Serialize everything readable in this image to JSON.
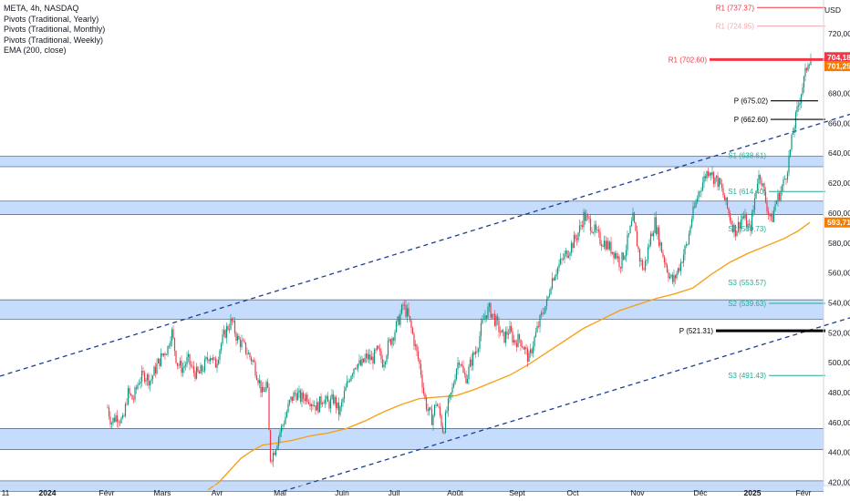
{
  "legend": {
    "symbol": "META, 4h, NASDAQ",
    "indicators": [
      "Pivots (Traditional, Yearly)",
      "Pivots (Traditional, Monthly)",
      "Pivots (Traditional, Weekly)",
      "EMA (200, close)"
    ]
  },
  "colors": {
    "up": "#089981",
    "down": "#f23645",
    "ema": "#f7a21b",
    "zone_fill": "#bbd6fb",
    "zone_border": "#5f7287",
    "channel": "#1c3f94",
    "pivot_black": "#000000",
    "pivot_green": "#22ab94",
    "pivot_red": "#f23645",
    "price_tag": "#f57c00"
  },
  "chart_data": {
    "type": "candlestick",
    "currency": "USD",
    "ylim": [
      415,
      745
    ],
    "y_ticks": [
      420,
      440,
      460,
      480,
      500,
      520,
      540,
      560,
      580,
      600,
      620,
      640,
      660,
      680,
      700,
      720
    ],
    "y_tick_labels": [
      "420,00",
      "440,00",
      "460,00",
      "480,00",
      "500,00",
      "520,00",
      "540,00",
      "560,00",
      "580,00",
      "600,00",
      "620,00",
      "640,00",
      "660,00",
      "680,00",
      "700,00",
      "720,00"
    ],
    "x_labels": [
      "11",
      "2024",
      "Févr",
      "Mars",
      "Avr",
      "Mai",
      "Juin",
      "Juil",
      "Août",
      "Sept",
      "Oct",
      "Nov",
      "Déc",
      "2025",
      "Févr"
    ],
    "x_label_bold": [
      "2024",
      "2025"
    ],
    "last_price_labels": [
      "704,18",
      "701,25"
    ],
    "ema_label": "593,71",
    "ema_value": 593.71,
    "zones": [
      [
        631,
        638
      ],
      [
        599,
        608
      ],
      [
        529,
        542
      ],
      [
        442,
        456
      ],
      [
        414,
        421
      ]
    ],
    "channel": {
      "upper": [
        [
          0,
          491
        ],
        [
          932,
          666
        ]
      ],
      "lower": [
        [
          310,
          414
        ],
        [
          932,
          530
        ]
      ]
    },
    "close_path": [
      [
        118,
        470
      ],
      [
        122,
        460
      ],
      [
        128,
        465
      ],
      [
        135,
        460
      ],
      [
        140,
        480
      ],
      [
        146,
        475
      ],
      [
        152,
        488
      ],
      [
        158,
        492
      ],
      [
        165,
        488
      ],
      [
        172,
        498
      ],
      [
        178,
        505
      ],
      [
        184,
        510
      ],
      [
        188,
        522
      ],
      [
        194,
        500
      ],
      [
        200,
        496
      ],
      [
        206,
        502
      ],
      [
        212,
        494
      ],
      [
        218,
        492
      ],
      [
        224,
        498
      ],
      [
        230,
        506
      ],
      [
        236,
        498
      ],
      [
        242,
        512
      ],
      [
        248,
        522
      ],
      [
        254,
        528
      ],
      [
        260,
        516
      ],
      [
        266,
        512
      ],
      [
        272,
        506
      ],
      [
        278,
        500
      ],
      [
        284,
        488
      ],
      [
        288,
        478
      ],
      [
        293,
        488
      ],
      [
        296,
        436
      ],
      [
        300,
        440
      ],
      [
        306,
        452
      ],
      [
        312,
        462
      ],
      [
        318,
        474
      ],
      [
        324,
        480
      ],
      [
        330,
        476
      ],
      [
        336,
        478
      ],
      [
        342,
        474
      ],
      [
        348,
        470
      ],
      [
        354,
        477
      ],
      [
        360,
        472
      ],
      [
        366,
        476
      ],
      [
        372,
        466
      ],
      [
        378,
        480
      ],
      [
        384,
        492
      ],
      [
        390,
        500
      ],
      [
        396,
        498
      ],
      [
        402,
        504
      ],
      [
        408,
        502
      ],
      [
        414,
        508
      ],
      [
        420,
        500
      ],
      [
        426,
        512
      ],
      [
        432,
        520
      ],
      [
        438,
        530
      ],
      [
        442,
        538
      ],
      [
        447,
        532
      ],
      [
        452,
        520
      ],
      [
        457,
        506
      ],
      [
        461,
        496
      ],
      [
        465,
        478
      ],
      [
        469,
        468
      ],
      [
        474,
        462
      ],
      [
        478,
        474
      ],
      [
        482,
        466
      ],
      [
        486,
        454
      ],
      [
        490,
        468
      ],
      [
        496,
        482
      ],
      [
        500,
        496
      ],
      [
        504,
        504
      ],
      [
        508,
        492
      ],
      [
        512,
        490
      ],
      [
        516,
        500
      ],
      [
        520,
        506
      ],
      [
        524,
        512
      ],
      [
        528,
        524
      ],
      [
        532,
        532
      ],
      [
        536,
        536
      ],
      [
        540,
        532
      ],
      [
        546,
        524
      ],
      [
        552,
        516
      ],
      [
        558,
        522
      ],
      [
        564,
        514
      ],
      [
        570,
        516
      ],
      [
        576,
        508
      ],
      [
        580,
        502
      ],
      [
        584,
        512
      ],
      [
        588,
        520
      ],
      [
        592,
        528
      ],
      [
        596,
        536
      ],
      [
        600,
        540
      ],
      [
        604,
        554
      ],
      [
        608,
        560
      ],
      [
        612,
        564
      ],
      [
        616,
        568
      ],
      [
        620,
        572
      ],
      [
        626,
        578
      ],
      [
        632,
        584
      ],
      [
        636,
        590
      ],
      [
        640,
        598
      ],
      [
        646,
        594
      ],
      [
        652,
        588
      ],
      [
        658,
        582
      ],
      [
        664,
        580
      ],
      [
        670,
        576
      ],
      [
        676,
        572
      ],
      [
        680,
        566
      ],
      [
        686,
        576
      ],
      [
        690,
        586
      ],
      [
        694,
        596
      ],
      [
        698,
        582
      ],
      [
        702,
        568
      ],
      [
        706,
        562
      ],
      [
        710,
        574
      ],
      [
        714,
        586
      ],
      [
        718,
        594
      ],
      [
        722,
        584
      ],
      [
        726,
        574
      ],
      [
        730,
        566
      ],
      [
        734,
        558
      ],
      [
        738,
        554
      ],
      [
        742,
        560
      ],
      [
        746,
        566
      ],
      [
        750,
        574
      ],
      [
        754,
        580
      ],
      [
        758,
        596
      ],
      [
        762,
        604
      ],
      [
        766,
        614
      ],
      [
        770,
        620
      ],
      [
        774,
        626
      ],
      [
        778,
        630
      ],
      [
        782,
        624
      ],
      [
        786,
        622
      ],
      [
        790,
        618
      ],
      [
        794,
        610
      ],
      [
        798,
        602
      ],
      [
        802,
        594
      ],
      [
        806,
        588
      ],
      [
        810,
        592
      ],
      [
        814,
        598
      ],
      [
        818,
        594
      ],
      [
        822,
        588
      ],
      [
        826,
        602
      ],
      [
        830,
        622
      ],
      [
        834,
        626
      ],
      [
        838,
        612
      ],
      [
        842,
        602
      ],
      [
        846,
        594
      ],
      [
        850,
        606
      ],
      [
        854,
        612
      ],
      [
        858,
        618
      ],
      [
        862,
        626
      ],
      [
        866,
        640
      ],
      [
        870,
        656
      ],
      [
        874,
        668
      ],
      [
        878,
        680
      ],
      [
        882,
        690
      ],
      [
        886,
        702
      ],
      [
        889,
        704
      ]
    ],
    "ema": [
      [
        228,
        415
      ],
      [
        240,
        420
      ],
      [
        252,
        428
      ],
      [
        264,
        436
      ],
      [
        276,
        441
      ],
      [
        288,
        445
      ],
      [
        300,
        446
      ],
      [
        320,
        448
      ],
      [
        340,
        451
      ],
      [
        360,
        453
      ],
      [
        380,
        456
      ],
      [
        400,
        461
      ],
      [
        420,
        467
      ],
      [
        440,
        472
      ],
      [
        460,
        476
      ],
      [
        480,
        477
      ],
      [
        500,
        478
      ],
      [
        520,
        482
      ],
      [
        540,
        487
      ],
      [
        560,
        492
      ],
      [
        580,
        499
      ],
      [
        600,
        507
      ],
      [
        620,
        515
      ],
      [
        640,
        523
      ],
      [
        660,
        529
      ],
      [
        680,
        535
      ],
      [
        700,
        539
      ],
      [
        720,
        543
      ],
      [
        740,
        546
      ],
      [
        760,
        550
      ],
      [
        780,
        559
      ],
      [
        800,
        567
      ],
      [
        820,
        573
      ],
      [
        840,
        578
      ],
      [
        860,
        583
      ],
      [
        875,
        588
      ],
      [
        888,
        593.71
      ]
    ],
    "pivots": [
      {
        "label": "R1 (737.37)",
        "value": 737.37,
        "x1": 830,
        "x2": 905,
        "color": "#f23645",
        "weight": 1,
        "showLine": true
      },
      {
        "label": "R1 (724.95)",
        "value": 724.95,
        "x1": 830,
        "x2": 905,
        "color": "#f7a8ae",
        "weight": 1,
        "showLine": true
      },
      {
        "label": "R1 (702.60)",
        "value": 702.6,
        "x1": 778,
        "x2": 905,
        "color": "#f23645",
        "weight": 3,
        "showLine": true
      },
      {
        "label": "P (675.02)",
        "value": 675.02,
        "x1": 845,
        "x2": 897,
        "color": "#000000",
        "weight": 1.2,
        "showLine": true
      },
      {
        "label": "P (662.60)",
        "value": 662.6,
        "x1": 845,
        "x2": 905,
        "color": "#000000",
        "weight": 1.2,
        "showLine": true
      },
      {
        "label": "S1 (638.61)",
        "value": 638.61,
        "x1": 843,
        "x2": 897,
        "color": "#22ab94",
        "weight": 1,
        "showLine": false
      },
      {
        "label": "S1 (614.40)",
        "value": 614.4,
        "x1": 843,
        "x2": 905,
        "color": "#22ab94",
        "weight": 1,
        "showLine": true
      },
      {
        "label": "S2 (589.73)",
        "value": 589.73,
        "x1": 843,
        "x2": 897,
        "color": "#22ab94",
        "weight": 1,
        "showLine": false
      },
      {
        "label": "S3 (553.57)",
        "value": 553.57,
        "x1": 843,
        "x2": 897,
        "color": "#22ab94",
        "weight": 1,
        "showLine": false
      },
      {
        "label": "S2 (539.63)",
        "value": 539.63,
        "x1": 843,
        "x2": 905,
        "color": "#22ab94",
        "weight": 1,
        "showLine": true
      },
      {
        "label": "P (521.31)",
        "value": 521.31,
        "x1": 785,
        "x2": 905,
        "color": "#000000",
        "weight": 3,
        "showLine": true
      },
      {
        "label": "S3 (491.43)",
        "value": 491.43,
        "x1": 843,
        "x2": 905,
        "color": "#22ab94",
        "weight": 1,
        "showLine": true
      }
    ]
  }
}
